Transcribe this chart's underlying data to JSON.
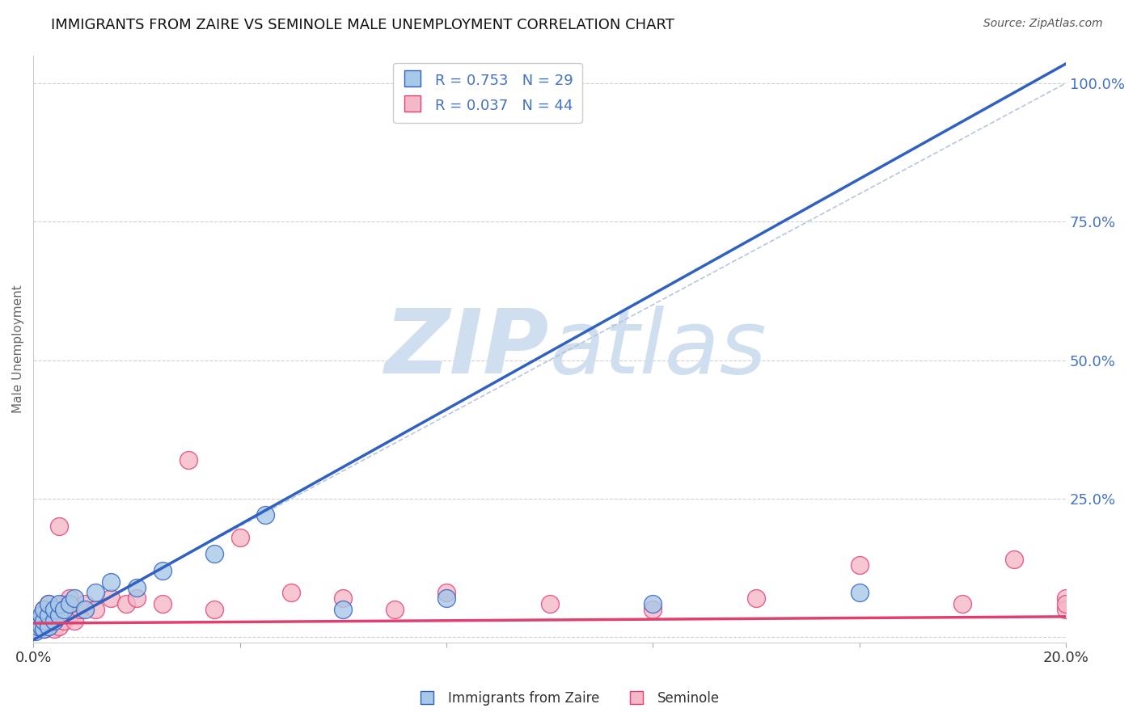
{
  "title": "IMMIGRANTS FROM ZAIRE VS SEMINOLE MALE UNEMPLOYMENT CORRELATION CHART",
  "source": "Source: ZipAtlas.com",
  "ylabel": "Male Unemployment",
  "yticks": [
    0.0,
    0.25,
    0.5,
    0.75,
    1.0
  ],
  "ytick_labels": [
    "",
    "25.0%",
    "50.0%",
    "75.0%",
    "100.0%"
  ],
  "xlim": [
    0.0,
    0.2
  ],
  "ylim": [
    -0.01,
    1.05
  ],
  "legend_r1": "R = 0.753",
  "legend_n1": "N = 29",
  "legend_r2": "R = 0.037",
  "legend_n2": "N = 44",
  "legend_label1": "Immigrants from Zaire",
  "legend_label2": "Seminole",
  "blue_color": "#a8c8e8",
  "pink_color": "#f5b8c8",
  "blue_line_color": "#3060c0",
  "pink_line_color": "#e04070",
  "watermark_color": "#d0dff0",
  "blue_line_slope": 5.2,
  "blue_line_intercept": -0.005,
  "pink_line_slope": 0.06,
  "pink_line_intercept": 0.025,
  "blue_scatter_x": [
    0.0005,
    0.001,
    0.001,
    0.0015,
    0.0015,
    0.002,
    0.002,
    0.002,
    0.003,
    0.003,
    0.003,
    0.004,
    0.004,
    0.005,
    0.005,
    0.006,
    0.007,
    0.008,
    0.01,
    0.012,
    0.015,
    0.02,
    0.025,
    0.035,
    0.045,
    0.06,
    0.08,
    0.12,
    0.16
  ],
  "blue_scatter_y": [
    0.01,
    0.02,
    0.03,
    0.02,
    0.04,
    0.015,
    0.03,
    0.05,
    0.02,
    0.04,
    0.06,
    0.03,
    0.05,
    0.04,
    0.06,
    0.05,
    0.06,
    0.07,
    0.05,
    0.08,
    0.1,
    0.09,
    0.12,
    0.15,
    0.22,
    0.05,
    0.07,
    0.06,
    0.08
  ],
  "pink_scatter_x": [
    0.0005,
    0.001,
    0.001,
    0.0015,
    0.002,
    0.002,
    0.002,
    0.003,
    0.003,
    0.003,
    0.004,
    0.004,
    0.004,
    0.005,
    0.005,
    0.005,
    0.006,
    0.006,
    0.007,
    0.007,
    0.008,
    0.009,
    0.01,
    0.012,
    0.015,
    0.018,
    0.02,
    0.025,
    0.03,
    0.035,
    0.04,
    0.05,
    0.06,
    0.07,
    0.08,
    0.1,
    0.12,
    0.14,
    0.16,
    0.18,
    0.19,
    0.2,
    0.2,
    0.2
  ],
  "pink_scatter_y": [
    0.02,
    0.015,
    0.03,
    0.02,
    0.015,
    0.03,
    0.05,
    0.02,
    0.04,
    0.06,
    0.015,
    0.03,
    0.05,
    0.02,
    0.04,
    0.2,
    0.03,
    0.06,
    0.04,
    0.07,
    0.03,
    0.05,
    0.06,
    0.05,
    0.07,
    0.06,
    0.07,
    0.06,
    0.32,
    0.05,
    0.18,
    0.08,
    0.07,
    0.05,
    0.08,
    0.06,
    0.05,
    0.07,
    0.13,
    0.06,
    0.14,
    0.07,
    0.05,
    0.06
  ]
}
